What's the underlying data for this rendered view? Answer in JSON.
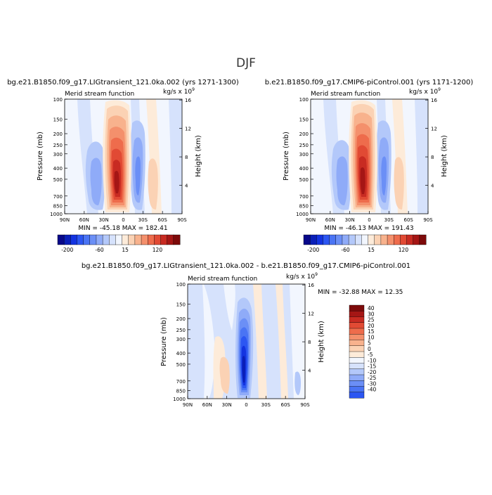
{
  "page_title": "DJF",
  "colors": {
    "neg": [
      "#08088a",
      "#0a1fb8",
      "#1333e0",
      "#2c56f2",
      "#4a74f4",
      "#6b8ff6",
      "#8fabf8",
      "#b3c8fa",
      "#d6e2fc",
      "#f2f6fe"
    ],
    "pos": [
      "#fdebd9",
      "#fbd2b4",
      "#f8b28d",
      "#f4906c",
      "#ee6c4c",
      "#e14a34",
      "#c82b22",
      "#a51615",
      "#7d0a0a"
    ],
    "bg": "#d9e7fc"
  },
  "chart_data": [
    {
      "type": "contour",
      "title": "bg.e21.B1850.f09_g17.LIGtransient_121.0ka.002 (yrs 1271-1300)",
      "subtitle_left": "Merid stream function",
      "subtitle_right": "kg/s x 10",
      "subtitle_exp": "9",
      "ylabel": "Pressure (mb)",
      "y2label": "Height (km)",
      "xticks": [
        "90N",
        "60N",
        "30N",
        "0",
        "30S",
        "60S",
        "90S"
      ],
      "yticks": [
        "100",
        "150",
        "200",
        "250",
        "300",
        "400",
        "500",
        "700",
        "850",
        "1000"
      ],
      "y2ticks": [
        "16",
        "12",
        "8",
        "4"
      ],
      "stats": "MIN = -45.18   MAX = 182.41",
      "min": -45.18,
      "max": 182.41,
      "colorbar_ticks": [
        "-200",
        "-60",
        "15",
        "120"
      ]
    },
    {
      "type": "contour",
      "title": "b.e21.B1850.f09_g17.CMIP6-piControl.001 (yrs 1171-1200)",
      "subtitle_left": "Merid stream function",
      "subtitle_right": "kg/s x 10",
      "subtitle_exp": "9",
      "ylabel": "Pressure (mb)",
      "y2label": "Height (km)",
      "xticks": [
        "90N",
        "60N",
        "30N",
        "0",
        "30S",
        "60S",
        "90S"
      ],
      "yticks": [
        "100",
        "150",
        "200",
        "250",
        "300",
        "400",
        "500",
        "700",
        "850",
        "1000"
      ],
      "y2ticks": [
        "16",
        "12",
        "8",
        "4"
      ],
      "stats": "MIN = -46.13   MAX = 191.43",
      "min": -46.13,
      "max": 191.43,
      "colorbar_ticks": [
        "-200",
        "-60",
        "15",
        "120"
      ]
    },
    {
      "type": "contour",
      "title": "bg.e21.B1850.f09_g17.LIGtransient_121.0ka.002 - b.e21.B1850.f09_g17.CMIP6-piControl.001",
      "subtitle_left": "Merid stream function",
      "subtitle_right": "kg/s x 10",
      "subtitle_exp": "9",
      "ylabel": "Pressure (mb)",
      "y2label": "Height (km)",
      "xticks": [
        "90N",
        "60N",
        "30N",
        "0",
        "30S",
        "60S",
        "90S"
      ],
      "yticks": [
        "100",
        "150",
        "200",
        "250",
        "300",
        "400",
        "500",
        "700",
        "850",
        "1000"
      ],
      "y2ticks": [
        "16",
        "12",
        "8",
        "4"
      ],
      "stats": "MIN = -32.88   MAX =  12.35",
      "min": -32.88,
      "max": 12.35,
      "colorbar_levels": [
        "40",
        "30",
        "25",
        "20",
        "15",
        "10",
        "5",
        "0",
        "-5",
        "-10",
        "-15",
        "-20",
        "-25",
        "-30",
        "-40"
      ]
    }
  ]
}
